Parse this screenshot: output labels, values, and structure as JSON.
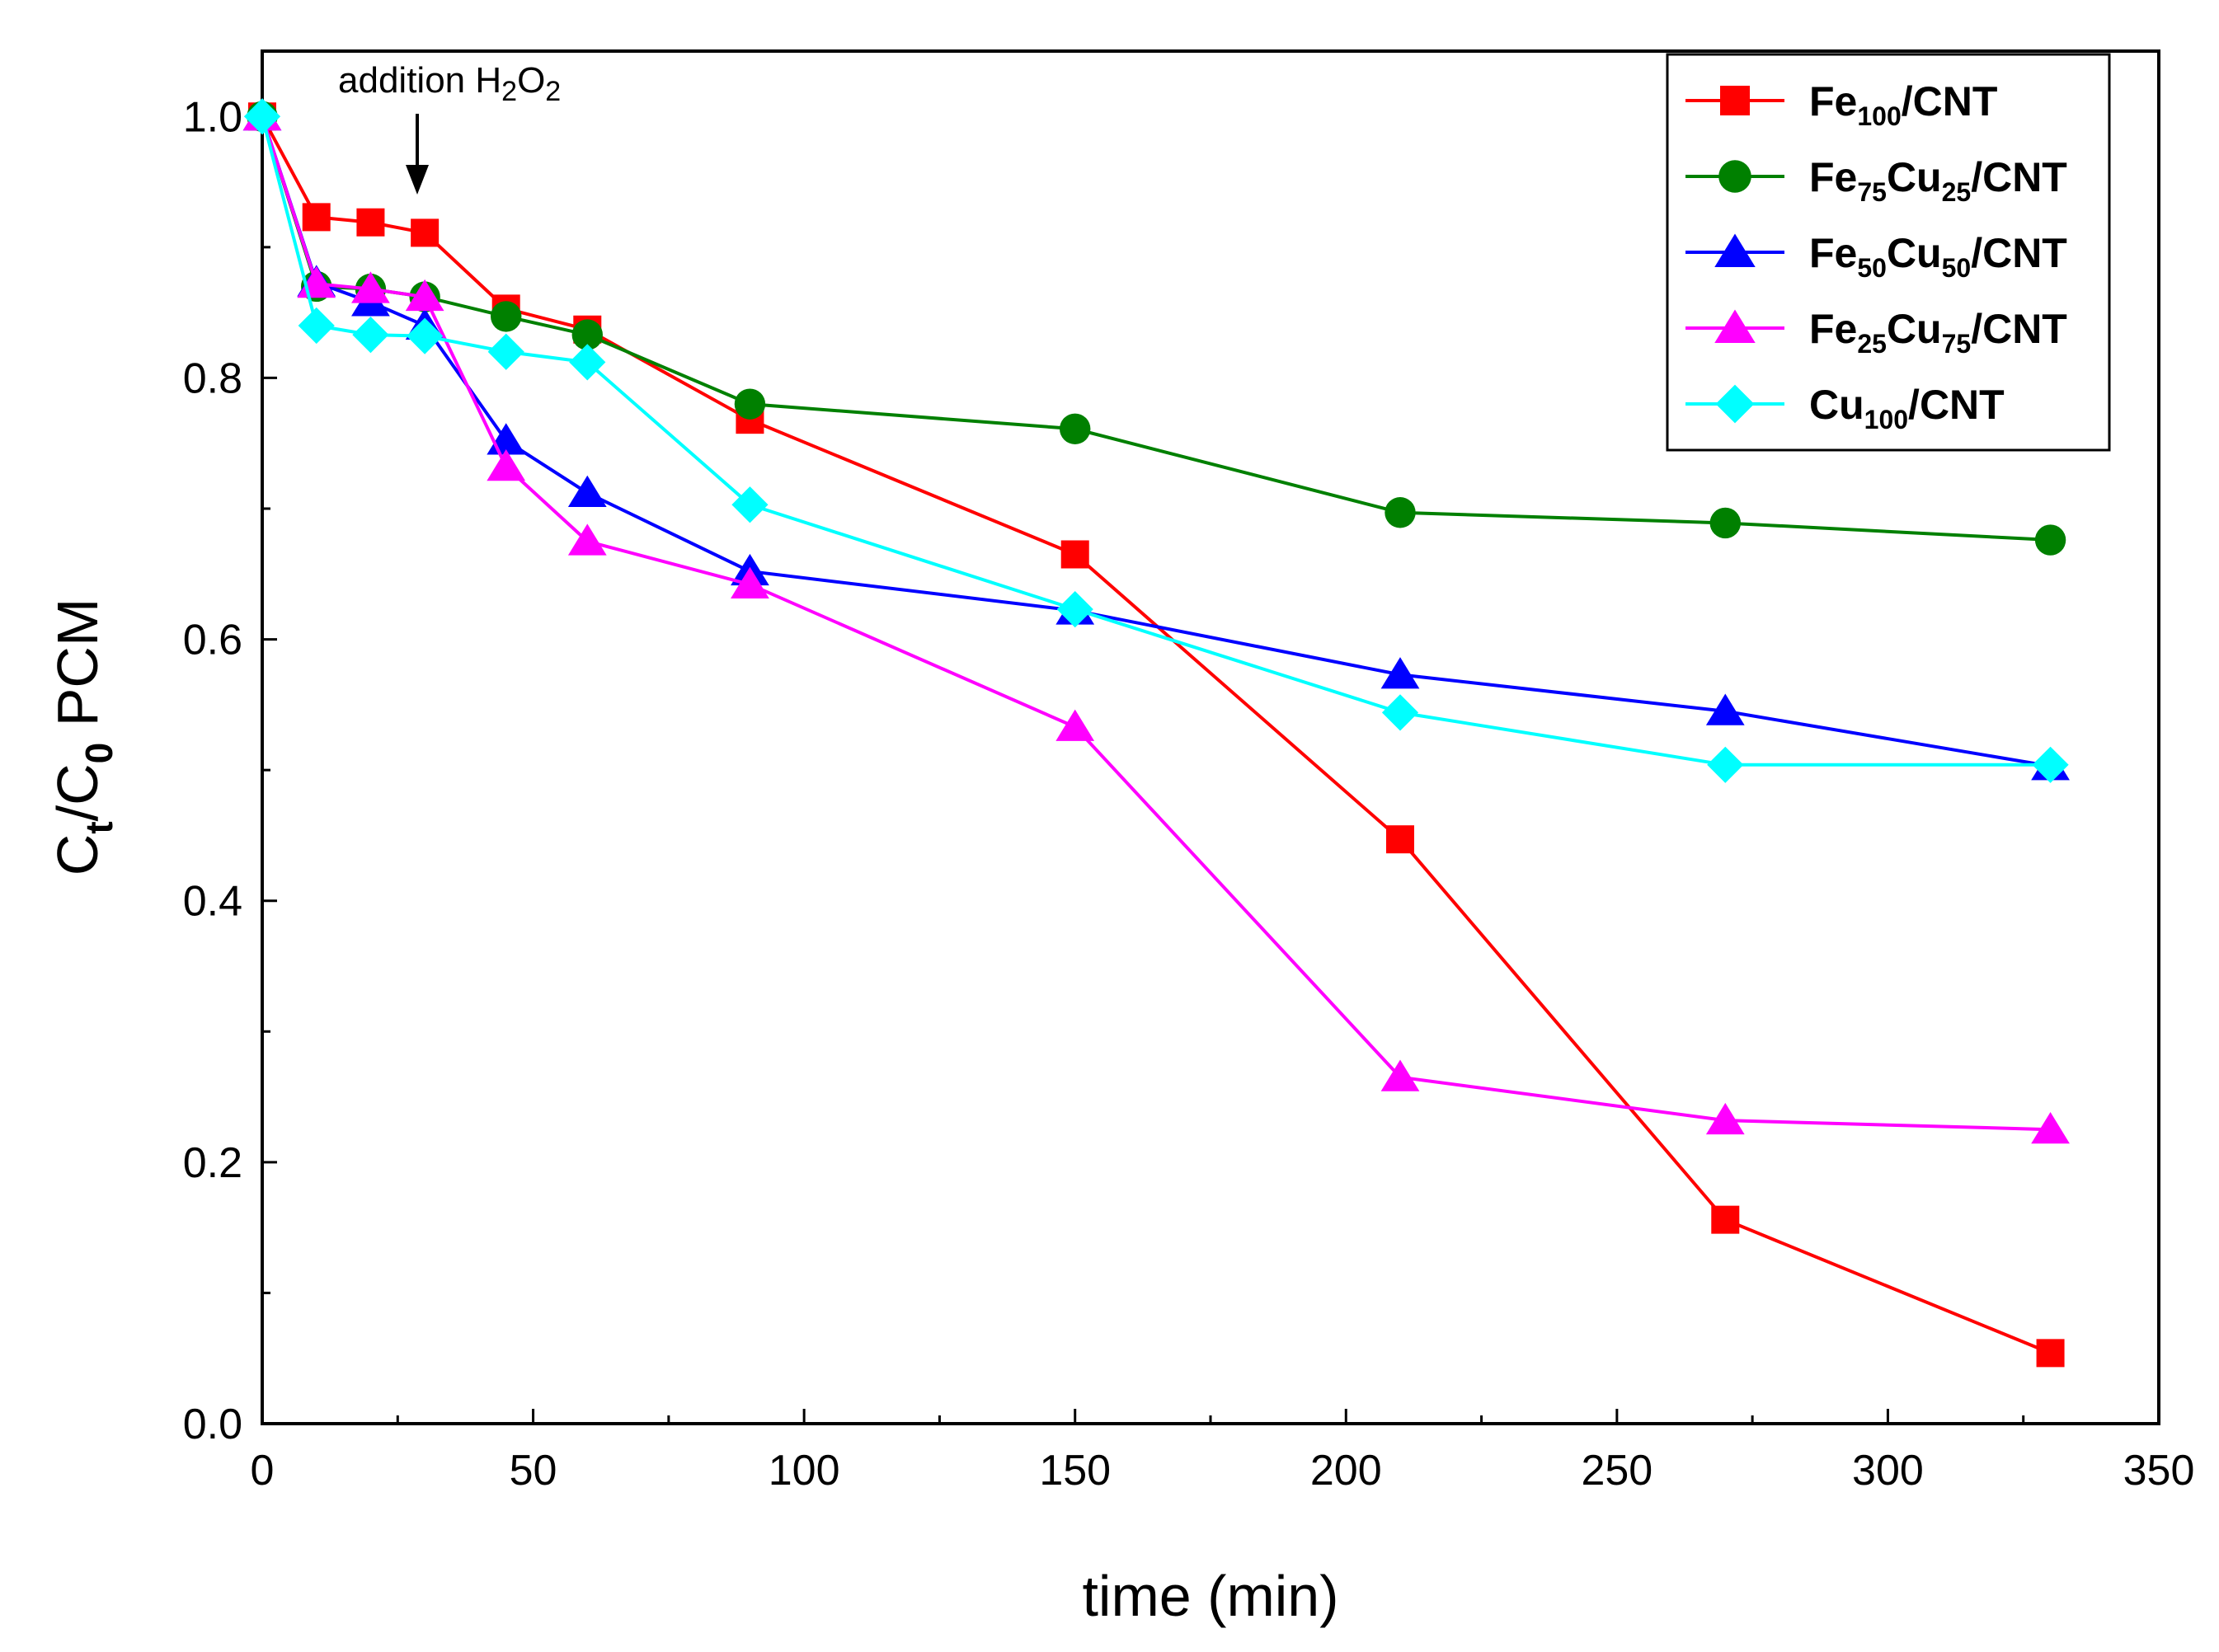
{
  "chart_data": {
    "type": "line",
    "title": "",
    "xlabel": "time (min)",
    "ylabel": {
      "main": "C",
      "sub1": "t",
      "mid": "/C",
      "sub2": "0",
      "tail": " PCM"
    },
    "xlim": [
      0,
      350
    ],
    "ylim": [
      0,
      1.05
    ],
    "xticks": [
      "0",
      "50",
      "100",
      "150",
      "200",
      "250",
      "300",
      "350"
    ],
    "yticks": [
      "0.0",
      "0.2",
      "0.4",
      "0.6",
      "0.8",
      "1.0"
    ],
    "grid": false,
    "legend_position": "top-right",
    "annotation": {
      "prefix": "addition H",
      "sub1": "2",
      "mid": "O",
      "sub2": "2",
      "x": 29,
      "y": 0.92
    },
    "series": [
      {
        "name": "Fe100/CNT",
        "label": {
          "base": "Fe",
          "sub": "100",
          "tail": "/CNT"
        },
        "color": "#ff0000",
        "marker": "square",
        "x": [
          0,
          10,
          20,
          30,
          45,
          60,
          90,
          150,
          210,
          270,
          330
        ],
        "values": [
          1.0,
          0.923,
          0.919,
          0.911,
          0.853,
          0.837,
          0.768,
          0.665,
          0.447,
          0.156,
          0.054
        ]
      },
      {
        "name": "Fe75Cu25/CNT",
        "label": {
          "base": "Fe",
          "sub": "75",
          "mid": "Cu",
          "sub2": "25",
          "tail": "/CNT"
        },
        "color": "#008000",
        "marker": "circle",
        "x": [
          0,
          10,
          20,
          30,
          45,
          60,
          90,
          150,
          210,
          270,
          330
        ],
        "values": [
          1.0,
          0.87,
          0.868,
          0.862,
          0.847,
          0.833,
          0.78,
          0.761,
          0.697,
          0.689,
          0.676
        ]
      },
      {
        "name": "Fe50Cu50/CNT",
        "label": {
          "base": "Fe",
          "sub": "50",
          "mid": "Cu",
          "sub2": "50",
          "tail": "/CNT"
        },
        "color": "#0000ff",
        "marker": "triangle",
        "x": [
          0,
          10,
          20,
          30,
          45,
          60,
          90,
          150,
          210,
          270,
          330
        ],
        "values": [
          1.0,
          0.873,
          0.858,
          0.84,
          0.752,
          0.712,
          0.652,
          0.622,
          0.573,
          0.545,
          0.503
        ]
      },
      {
        "name": "Fe25Cu75/CNT",
        "label": {
          "base": "Fe",
          "sub": "25",
          "mid": "Cu",
          "sub2": "75",
          "tail": "/CNT"
        },
        "color": "#ff00ff",
        "marker": "triangle",
        "x": [
          0,
          10,
          20,
          30,
          45,
          60,
          90,
          150,
          210,
          270,
          330
        ],
        "values": [
          1.0,
          0.872,
          0.868,
          0.862,
          0.732,
          0.675,
          0.642,
          0.533,
          0.265,
          0.232,
          0.225
        ]
      },
      {
        "name": "Cu100/CNT",
        "label": {
          "base": "Cu",
          "sub": "100",
          "tail": "/CNT"
        },
        "color": "#00ffff",
        "marker": "diamond",
        "x": [
          0,
          10,
          20,
          30,
          45,
          60,
          90,
          150,
          210,
          270,
          330
        ],
        "values": [
          1.0,
          0.84,
          0.833,
          0.832,
          0.82,
          0.812,
          0.703,
          0.623,
          0.544,
          0.504,
          0.504
        ]
      }
    ]
  }
}
